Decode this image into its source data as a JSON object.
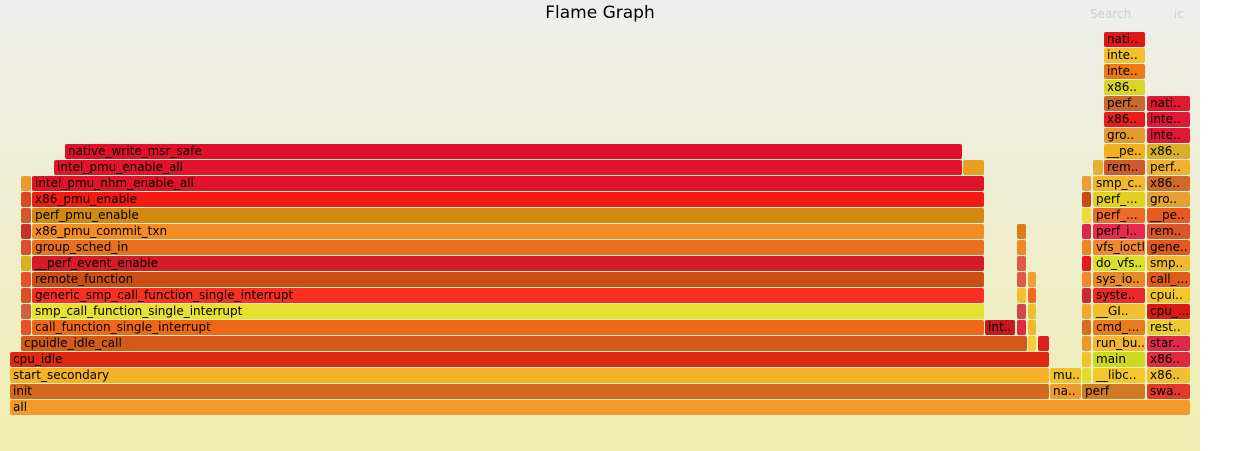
{
  "title": "Flame Graph",
  "controls": {
    "search_label": "Search",
    "ic_label": "ic"
  },
  "frames": [
    {
      "l": 10,
      "r": 1190,
      "d": 0,
      "label": "all",
      "color": "#f29a2a"
    },
    {
      "l": 10,
      "r": 1049,
      "d": 1,
      "label": "init",
      "color": "#d2691e"
    },
    {
      "l": 1050,
      "r": 1081,
      "d": 1,
      "label": "na..",
      "color": "#f09a2e"
    },
    {
      "l": 1082,
      "r": 1145,
      "d": 1,
      "label": "perf",
      "color": "#d07a28"
    },
    {
      "l": 1147,
      "r": 1190,
      "d": 1,
      "label": "swa..",
      "color": "#e23a2a"
    },
    {
      "l": 10,
      "r": 1049,
      "d": 2,
      "label": "start_secondary",
      "color": "#f4b226"
    },
    {
      "l": 1050,
      "r": 1081,
      "d": 2,
      "label": "mu..",
      "color": "#f0c030"
    },
    {
      "l": 1082,
      "r": 1091,
      "d": 2,
      "label": "",
      "color": "#dede30"
    },
    {
      "l": 1093,
      "r": 1145,
      "d": 2,
      "label": "__libc..",
      "color": "#f4c82a"
    },
    {
      "l": 1147,
      "r": 1190,
      "d": 2,
      "label": "x86..",
      "color": "#f0c032"
    },
    {
      "l": 10,
      "r": 1049,
      "d": 3,
      "label": "cpu_idle",
      "color": "#dd2a10"
    },
    {
      "l": 1082,
      "r": 1091,
      "d": 3,
      "label": "",
      "color": "#f2c22c"
    },
    {
      "l": 1093,
      "r": 1145,
      "d": 3,
      "label": "main",
      "color": "#cfd820"
    },
    {
      "l": 1147,
      "r": 1190,
      "d": 3,
      "label": "x86..",
      "color": "#e02a40"
    },
    {
      "l": 21,
      "r": 1027,
      "d": 4,
      "label": "cpuidle_idle_call",
      "color": "#d25a1a"
    },
    {
      "l": 1028,
      "r": 1036,
      "d": 4,
      "label": "",
      "color": "#eed03a"
    },
    {
      "l": 1038,
      "r": 1049,
      "d": 4,
      "label": "",
      "color": "#e01e1e"
    },
    {
      "l": 1082,
      "r": 1091,
      "d": 4,
      "label": "",
      "color": "#e89a2a"
    },
    {
      "l": 1093,
      "r": 1145,
      "d": 4,
      "label": "run_bu..",
      "color": "#f4b830"
    },
    {
      "l": 1147,
      "r": 1190,
      "d": 4,
      "label": "star..",
      "color": "#e0284a"
    },
    {
      "l": 21,
      "r": 31,
      "d": 5,
      "label": "",
      "color": "#e8502a"
    },
    {
      "l": 32,
      "r": 984,
      "d": 5,
      "label": "call_function_single_interrupt",
      "color": "#ee6818"
    },
    {
      "l": 985,
      "r": 1015,
      "d": 5,
      "label": "int..",
      "color": "#c8181e"
    },
    {
      "l": 1017,
      "r": 1026,
      "d": 5,
      "label": "",
      "color": "#e02a44"
    },
    {
      "l": 1028,
      "r": 1036,
      "d": 5,
      "label": "",
      "color": "#f0b830"
    },
    {
      "l": 1082,
      "r": 1091,
      "d": 5,
      "label": "",
      "color": "#d07028"
    },
    {
      "l": 1093,
      "r": 1145,
      "d": 5,
      "label": "cmd_...",
      "color": "#e87a20"
    },
    {
      "l": 1147,
      "r": 1190,
      "d": 5,
      "label": "rest..",
      "color": "#eccc30"
    },
    {
      "l": 21,
      "r": 31,
      "d": 6,
      "label": "",
      "color": "#d06040"
    },
    {
      "l": 32,
      "r": 984,
      "d": 6,
      "label": "smp_call_function_single_interrupt",
      "color": "#e8e030"
    },
    {
      "l": 1017,
      "r": 1026,
      "d": 6,
      "label": "",
      "color": "#d04848"
    },
    {
      "l": 1028,
      "r": 1036,
      "d": 6,
      "label": "",
      "color": "#e8c030"
    },
    {
      "l": 1082,
      "r": 1091,
      "d": 6,
      "label": "",
      "color": "#f0a830"
    },
    {
      "l": 1093,
      "r": 1145,
      "d": 6,
      "label": "__GI..",
      "color": "#f0c030"
    },
    {
      "l": 1147,
      "r": 1190,
      "d": 6,
      "label": "cpu_...",
      "color": "#d81a14"
    },
    {
      "l": 21,
      "r": 31,
      "d": 7,
      "label": "",
      "color": "#d8502a"
    },
    {
      "l": 32,
      "r": 984,
      "d": 7,
      "label": "generic_smp_call_function_single_interrupt",
      "color": "#f83024"
    },
    {
      "l": 1017,
      "r": 1026,
      "d": 7,
      "label": "",
      "color": "#f0c030"
    },
    {
      "l": 1028,
      "r": 1036,
      "d": 7,
      "label": "",
      "color": "#f06820"
    },
    {
      "l": 1082,
      "r": 1091,
      "d": 7,
      "label": "",
      "color": "#c82838"
    },
    {
      "l": 1093,
      "r": 1145,
      "d": 7,
      "label": "syste..",
      "color": "#e82a2a"
    },
    {
      "l": 1147,
      "r": 1190,
      "d": 7,
      "label": "cpui..",
      "color": "#f4c82c"
    },
    {
      "l": 21,
      "r": 31,
      "d": 8,
      "label": "",
      "color": "#e8502a"
    },
    {
      "l": 32,
      "r": 984,
      "d": 8,
      "label": "remote_function",
      "color": "#cc5016"
    },
    {
      "l": 1017,
      "r": 1026,
      "d": 8,
      "label": "",
      "color": "#e05848"
    },
    {
      "l": 1028,
      "r": 1036,
      "d": 8,
      "label": "",
      "color": "#f0a030"
    },
    {
      "l": 1082,
      "r": 1091,
      "d": 8,
      "label": "",
      "color": "#f08830"
    },
    {
      "l": 1093,
      "r": 1145,
      "d": 8,
      "label": "sys_io..",
      "color": "#e88a28"
    },
    {
      "l": 1147,
      "r": 1190,
      "d": 8,
      "label": "call_...",
      "color": "#e05a18"
    },
    {
      "l": 21,
      "r": 31,
      "d": 9,
      "label": "",
      "color": "#d8b020"
    },
    {
      "l": 32,
      "r": 984,
      "d": 9,
      "label": "__perf_event_enable",
      "color": "#d41c2a"
    },
    {
      "l": 1017,
      "r": 1026,
      "d": 9,
      "label": "",
      "color": "#e05a48"
    },
    {
      "l": 1082,
      "r": 1091,
      "d": 9,
      "label": "",
      "color": "#e8181e"
    },
    {
      "l": 1093,
      "r": 1145,
      "d": 9,
      "label": "do_vfs..",
      "color": "#d8e028"
    },
    {
      "l": 1147,
      "r": 1190,
      "d": 9,
      "label": "smp..",
      "color": "#f0b830"
    },
    {
      "l": 21,
      "r": 31,
      "d": 10,
      "label": "",
      "color": "#d85030"
    },
    {
      "l": 32,
      "r": 984,
      "d": 10,
      "label": "group_sched_in",
      "color": "#e8701e"
    },
    {
      "l": 1017,
      "r": 1026,
      "d": 10,
      "label": "",
      "color": "#ee8828"
    },
    {
      "l": 1082,
      "r": 1091,
      "d": 10,
      "label": "",
      "color": "#e88828"
    },
    {
      "l": 1093,
      "r": 1145,
      "d": 10,
      "label": "vfs_ioctl",
      "color": "#f08830"
    },
    {
      "l": 1147,
      "r": 1190,
      "d": 10,
      "label": "gene..",
      "color": "#e05a20"
    },
    {
      "l": 21,
      "r": 31,
      "d": 11,
      "label": "",
      "color": "#c83030"
    },
    {
      "l": 32,
      "r": 984,
      "d": 11,
      "label": "x86_pmu_commit_txn",
      "color": "#f38c24"
    },
    {
      "l": 1017,
      "r": 1026,
      "d": 11,
      "label": "",
      "color": "#e07a1e"
    },
    {
      "l": 1082,
      "r": 1091,
      "d": 11,
      "label": "",
      "color": "#d82a4a"
    },
    {
      "l": 1093,
      "r": 1145,
      "d": 11,
      "label": "perf_i..",
      "color": "#e82a50"
    },
    {
      "l": 1147,
      "r": 1190,
      "d": 11,
      "label": "rem..",
      "color": "#d8562a"
    },
    {
      "l": 21,
      "r": 31,
      "d": 12,
      "label": "",
      "color": "#d05a30"
    },
    {
      "l": 32,
      "r": 984,
      "d": 12,
      "label": "perf_pmu_enable",
      "color": "#d08a10"
    },
    {
      "l": 1082,
      "r": 1091,
      "d": 12,
      "label": "",
      "color": "#f0d838"
    },
    {
      "l": 1093,
      "r": 1145,
      "d": 12,
      "label": "perf_...",
      "color": "#ee6a28"
    },
    {
      "l": 1147,
      "r": 1190,
      "d": 12,
      "label": "__pe..",
      "color": "#ea5a20"
    },
    {
      "l": 21,
      "r": 31,
      "d": 13,
      "label": "",
      "color": "#d84a20"
    },
    {
      "l": 32,
      "r": 984,
      "d": 13,
      "label": "x86_pmu_enable",
      "color": "#f21a14"
    },
    {
      "l": 1082,
      "r": 1091,
      "d": 13,
      "label": "",
      "color": "#cc4a18"
    },
    {
      "l": 1093,
      "r": 1145,
      "d": 13,
      "label": "perf_...",
      "color": "#e0d020"
    },
    {
      "l": 1147,
      "r": 1190,
      "d": 13,
      "label": "gro..",
      "color": "#e4a030"
    },
    {
      "l": 21,
      "r": 31,
      "d": 14,
      "label": "",
      "color": "#e89a2a"
    },
    {
      "l": 32,
      "r": 984,
      "d": 14,
      "label": "intel_pmu_nhm_enable_all",
      "color": "#e01428"
    },
    {
      "l": 1082,
      "r": 1091,
      "d": 14,
      "label": "",
      "color": "#eaa036"
    },
    {
      "l": 1093,
      "r": 1145,
      "d": 14,
      "label": "smp_c..",
      "color": "#f0b82c"
    },
    {
      "l": 1147,
      "r": 1190,
      "d": 14,
      "label": "x86..",
      "color": "#d06a2a"
    },
    {
      "l": 54,
      "r": 962,
      "d": 15,
      "label": "intel_pmu_enable_all",
      "color": "#e0142c"
    },
    {
      "l": 963,
      "r": 984,
      "d": 15,
      "label": "",
      "color": "#e8a020"
    },
    {
      "l": 1093,
      "r": 1103,
      "d": 15,
      "label": "",
      "color": "#e8b030"
    },
    {
      "l": 1104,
      "r": 1145,
      "d": 15,
      "label": "rem..",
      "color": "#ce5a2e"
    },
    {
      "l": 1147,
      "r": 1190,
      "d": 15,
      "label": "perf..",
      "color": "#f0b030"
    },
    {
      "l": 65,
      "r": 962,
      "d": 16,
      "label": "native_write_msr_safe",
      "color": "#e0102c"
    },
    {
      "l": 1104,
      "r": 1145,
      "d": 16,
      "label": "__pe..",
      "color": "#f2b01e"
    },
    {
      "l": 1147,
      "r": 1190,
      "d": 16,
      "label": "x86..",
      "color": "#d8b028"
    },
    {
      "l": 1104,
      "r": 1145,
      "d": 17,
      "label": "gro..",
      "color": "#e29a30"
    },
    {
      "l": 1147,
      "r": 1190,
      "d": 17,
      "label": "inte..",
      "color": "#e01838"
    },
    {
      "l": 1104,
      "r": 1145,
      "d": 18,
      "label": "x86..",
      "color": "#e81e1e"
    },
    {
      "l": 1147,
      "r": 1190,
      "d": 18,
      "label": "inte..",
      "color": "#e01838"
    },
    {
      "l": 1104,
      "r": 1145,
      "d": 19,
      "label": "perf..",
      "color": "#c86a30"
    },
    {
      "l": 1147,
      "r": 1190,
      "d": 19,
      "label": "nati..",
      "color": "#e01830"
    },
    {
      "l": 1104,
      "r": 1145,
      "d": 20,
      "label": "x86..",
      "color": "#d8d428"
    },
    {
      "l": 1104,
      "r": 1145,
      "d": 21,
      "label": "inte..",
      "color": "#ee7a14"
    },
    {
      "l": 1104,
      "r": 1145,
      "d": 22,
      "label": "inte..",
      "color": "#f0c02e"
    },
    {
      "l": 1104,
      "r": 1145,
      "d": 23,
      "label": "nati..",
      "color": "#e01818"
    }
  ]
}
